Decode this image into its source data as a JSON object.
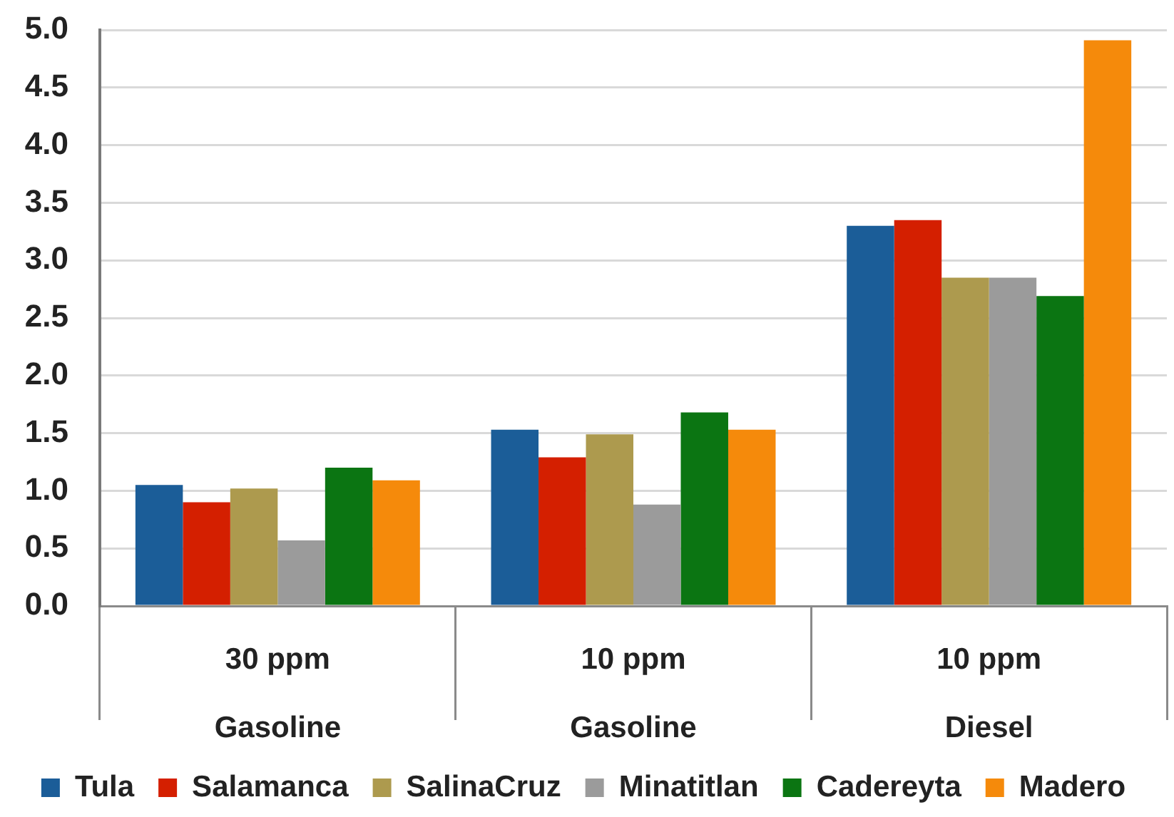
{
  "chart_data": {
    "type": "bar",
    "categories": [
      "30 ppm\nGasoline",
      "10 ppm\nGasoline",
      "10 ppm\nDiesel"
    ],
    "series": [
      {
        "name": "Tula",
        "color": "#1b5d98",
        "values": [
          1.05,
          1.53,
          3.3
        ]
      },
      {
        "name": "Salamanca",
        "color": "#d41f00",
        "values": [
          0.9,
          1.29,
          3.35
        ]
      },
      {
        "name": "SalinaCruz",
        "color": "#ad9a4e",
        "values": [
          1.02,
          1.49,
          2.85
        ]
      },
      {
        "name": "Minatitlan",
        "color": "#9b9b9b",
        "values": [
          0.57,
          0.88,
          2.85
        ]
      },
      {
        "name": "Cadereyta",
        "color": "#0b7512",
        "values": [
          1.2,
          1.68,
          2.69
        ]
      },
      {
        "name": "Madero",
        "color": "#f58a0b",
        "values": [
          1.09,
          1.53,
          4.91
        ]
      }
    ],
    "ylim": [
      0,
      5
    ],
    "yticks": [
      {
        "value": 0,
        "label": "0.0"
      },
      {
        "value": 0.5,
        "label": "0.5"
      },
      {
        "value": 1,
        "label": "1.0"
      },
      {
        "value": 1.5,
        "label": "1.5"
      },
      {
        "value": 2,
        "label": "2.0"
      },
      {
        "value": 2.5,
        "label": "2.5"
      },
      {
        "value": 3,
        "label": "3.0"
      },
      {
        "value": 3.5,
        "label": "3.5"
      },
      {
        "value": 4,
        "label": "4.0"
      },
      {
        "value": 4.5,
        "label": "4.5"
      },
      {
        "value": 5,
        "label": "5.0"
      }
    ],
    "grid": "y",
    "legend": "bottom"
  }
}
